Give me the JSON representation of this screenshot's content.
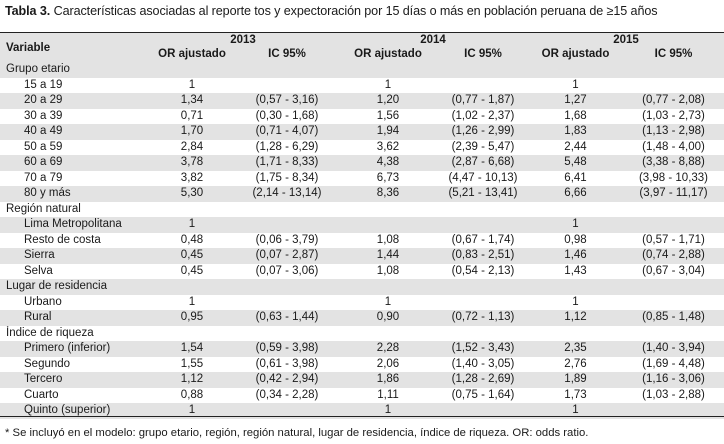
{
  "caption": {
    "label": "Tabla 3.",
    "text": "Características asociadas al reporte tos y expectoración por 15 días o más en población peruana de ≥15 años"
  },
  "header": {
    "variable": "Variable",
    "years": [
      "2013",
      "2014",
      "2015"
    ],
    "or_label": "OR ajustado",
    "ic_label": "IC 95%"
  },
  "rows": [
    {
      "label": "Grupo etario",
      "type": "group",
      "v": [
        "",
        "",
        "",
        "",
        "",
        ""
      ]
    },
    {
      "label": "15 a 19",
      "type": "item",
      "v": [
        "1",
        "",
        "1",
        "",
        "1",
        ""
      ]
    },
    {
      "label": "20 a 29",
      "type": "item",
      "v": [
        "1,34",
        "(0,57 - 3,16)",
        "1,20",
        "(0,77 - 1,87)",
        "1,27",
        "(0,77 - 2,08)"
      ]
    },
    {
      "label": "30 a 39",
      "type": "item",
      "v": [
        "0,71",
        "(0,30 - 1,68)",
        "1,56",
        "(1,02 - 2,37)",
        "1,68",
        "(1,03 - 2,73)"
      ]
    },
    {
      "label": "40 a 49",
      "type": "item",
      "v": [
        "1,70",
        "(0,71 - 4,07)",
        "1,94",
        "(1,26 - 2,99)",
        "1,83",
        "(1,13 - 2,98)"
      ]
    },
    {
      "label": "50 a 59",
      "type": "item",
      "v": [
        "2,84",
        "(1,28 - 6,29)",
        "3,62",
        "(2,39 - 5,47)",
        "2,44",
        "(1,48 - 4,00)"
      ]
    },
    {
      "label": "60 a 69",
      "type": "item",
      "v": [
        "3,78",
        "(1,71 - 8,33)",
        "4,38",
        "(2,87 - 6,68)",
        "5,48",
        "(3,38 - 8,88)"
      ]
    },
    {
      "label": "70 a 79",
      "type": "item",
      "v": [
        "3,82",
        "(1,75 - 8,34)",
        "6,73",
        "(4,47 - 10,13)",
        "6,41",
        "(3,98 - 10,33)"
      ]
    },
    {
      "label": "80 y más",
      "type": "item",
      "v": [
        "5,30",
        "(2,14 - 13,14)",
        "8,36",
        "(5,21 - 13,41)",
        "6,66",
        "(3,97 - 11,17)"
      ]
    },
    {
      "label": "Región natural",
      "type": "group",
      "v": [
        "",
        "",
        "",
        "",
        "",
        ""
      ]
    },
    {
      "label": "Lima Metropolitana",
      "type": "item",
      "v": [
        "1",
        "",
        "",
        "",
        "1",
        ""
      ]
    },
    {
      "label": "Resto de costa",
      "type": "item",
      "v": [
        "0,48",
        "(0,06 - 3,79)",
        "1,08",
        "(0,67 - 1,74)",
        "0,98",
        "(0,57 - 1,71)"
      ]
    },
    {
      "label": "Sierra",
      "type": "item",
      "v": [
        "0,45",
        "(0,07 - 2,87)",
        "1,44",
        "(0,83 - 2,51)",
        "1,46",
        "(0,74 - 2,88)"
      ]
    },
    {
      "label": "Selva",
      "type": "item",
      "v": [
        "0,45",
        "(0,07 - 3,06)",
        "1,08",
        "(0,54 - 2,13)",
        "1,43",
        "(0,67 - 3,04)"
      ]
    },
    {
      "label": "Lugar de residencia",
      "type": "group",
      "v": [
        "",
        "",
        "",
        "",
        "",
        ""
      ]
    },
    {
      "label": "Urbano",
      "type": "item",
      "v": [
        "1",
        "",
        "1",
        "",
        "1",
        ""
      ]
    },
    {
      "label": "Rural",
      "type": "item",
      "v": [
        "0,95",
        "(0,63 - 1,44)",
        "0,90",
        "(0,72 - 1,13)",
        "1,12",
        "(0,85 - 1,48)"
      ]
    },
    {
      "label": "Índice de riqueza",
      "type": "group",
      "v": [
        "",
        "",
        "",
        "",
        "",
        ""
      ]
    },
    {
      "label": "Primero (inferior)",
      "type": "item",
      "v": [
        "1,54",
        "(0,59 - 3,98)",
        "2,28",
        "(1,52 - 3,43)",
        "2,35",
        "(1,40 - 3,94)"
      ]
    },
    {
      "label": "Segundo",
      "type": "item",
      "v": [
        "1,55",
        "(0,61 - 3,98)",
        "2,06",
        "(1,40 - 3,05)",
        "2,76",
        "(1,69 - 4,48)"
      ]
    },
    {
      "label": "Tercero",
      "type": "item",
      "v": [
        "1,12",
        "(0,42 - 2,94)",
        "1,86",
        "(1,28 - 2,69)",
        "1,89",
        "(1,16 - 3,06)"
      ]
    },
    {
      "label": "Cuarto",
      "type": "item",
      "v": [
        "0,88",
        "(0,34 - 2,28)",
        "1,11",
        "(0,75 - 1,64)",
        "1,73",
        "(1,03 - 2,88)"
      ]
    },
    {
      "label": "Quinto (superior)",
      "type": "item",
      "v": [
        "1",
        "",
        "1",
        "",
        "1",
        ""
      ]
    }
  ],
  "footnote": "* Se incluyó en el modelo: grupo etario, región, región natural, lugar de residencia, índice de riqueza. OR: odds ratio.",
  "colors": {
    "band": "#e3e3e3",
    "rule": "#222222"
  }
}
